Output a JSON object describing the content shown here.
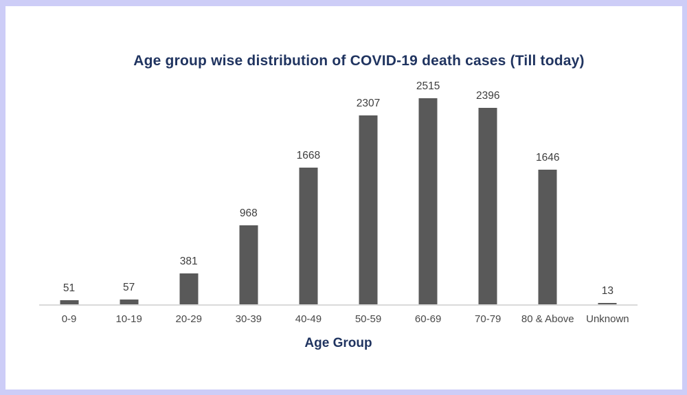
{
  "frame": {
    "border_color": "#cdcdf7",
    "background_color": "#ffffff"
  },
  "chart_data": {
    "type": "bar",
    "title": "Age group wise distribution of COVID-19 death cases (Till today)",
    "xlabel": "Age Group",
    "ylabel": "",
    "categories": [
      "0-9",
      "10-19",
      "20-29",
      "30-39",
      "40-49",
      "50-59",
      "60-69",
      "70-79",
      "80 & Above",
      "Unknown"
    ],
    "values": [
      51,
      57,
      381,
      968,
      1668,
      2307,
      2515,
      2396,
      1646,
      13
    ],
    "data_labels": [
      51,
      57,
      381,
      968,
      1668,
      2307,
      2515,
      2396,
      1646,
      13
    ],
    "ylim": [
      0,
      2515
    ],
    "grid": false,
    "legend": false,
    "bar_color": "#595959",
    "axis_line_color": "#d9d9d9",
    "title_color": "#203460",
    "xlabel_color": "#203460",
    "data_label_color": "#3d3d3d",
    "category_label_color": "#474747"
  }
}
